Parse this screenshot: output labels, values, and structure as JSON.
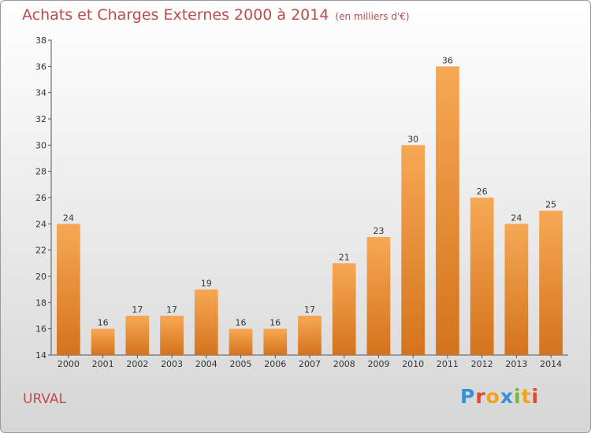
{
  "title": "Achats et Charges Externes 2000 à 2014",
  "subtitle": "(en milliers d'€)",
  "commune": "URVAL",
  "logo_text": "Proxiti",
  "logo_colors": [
    "#3a8fd6",
    "#e0492f",
    "#f2a21b",
    "#3a8fd6",
    "#7cb831",
    "#f2a21b",
    "#e0492f"
  ],
  "colors": {
    "bar_light": "#f7a854",
    "bar_dark": "#d4731d",
    "title": "#c04a4a"
  },
  "chart_data": {
    "type": "bar",
    "categories": [
      "2000",
      "2001",
      "2002",
      "2003",
      "2004",
      "2005",
      "2006",
      "2007",
      "2008",
      "2009",
      "2010",
      "2011",
      "2012",
      "2013",
      "2014"
    ],
    "values": [
      24,
      16,
      17,
      17,
      19,
      16,
      16,
      17,
      21,
      23,
      30,
      36,
      26,
      24,
      25
    ],
    "ylim": [
      14,
      38
    ],
    "yticks": [
      14,
      16,
      18,
      20,
      22,
      24,
      26,
      28,
      30,
      32,
      34,
      36,
      38
    ],
    "grid": false,
    "title": "Achats et Charges Externes 2000 à 2014",
    "xlabel": "",
    "ylabel": ""
  }
}
